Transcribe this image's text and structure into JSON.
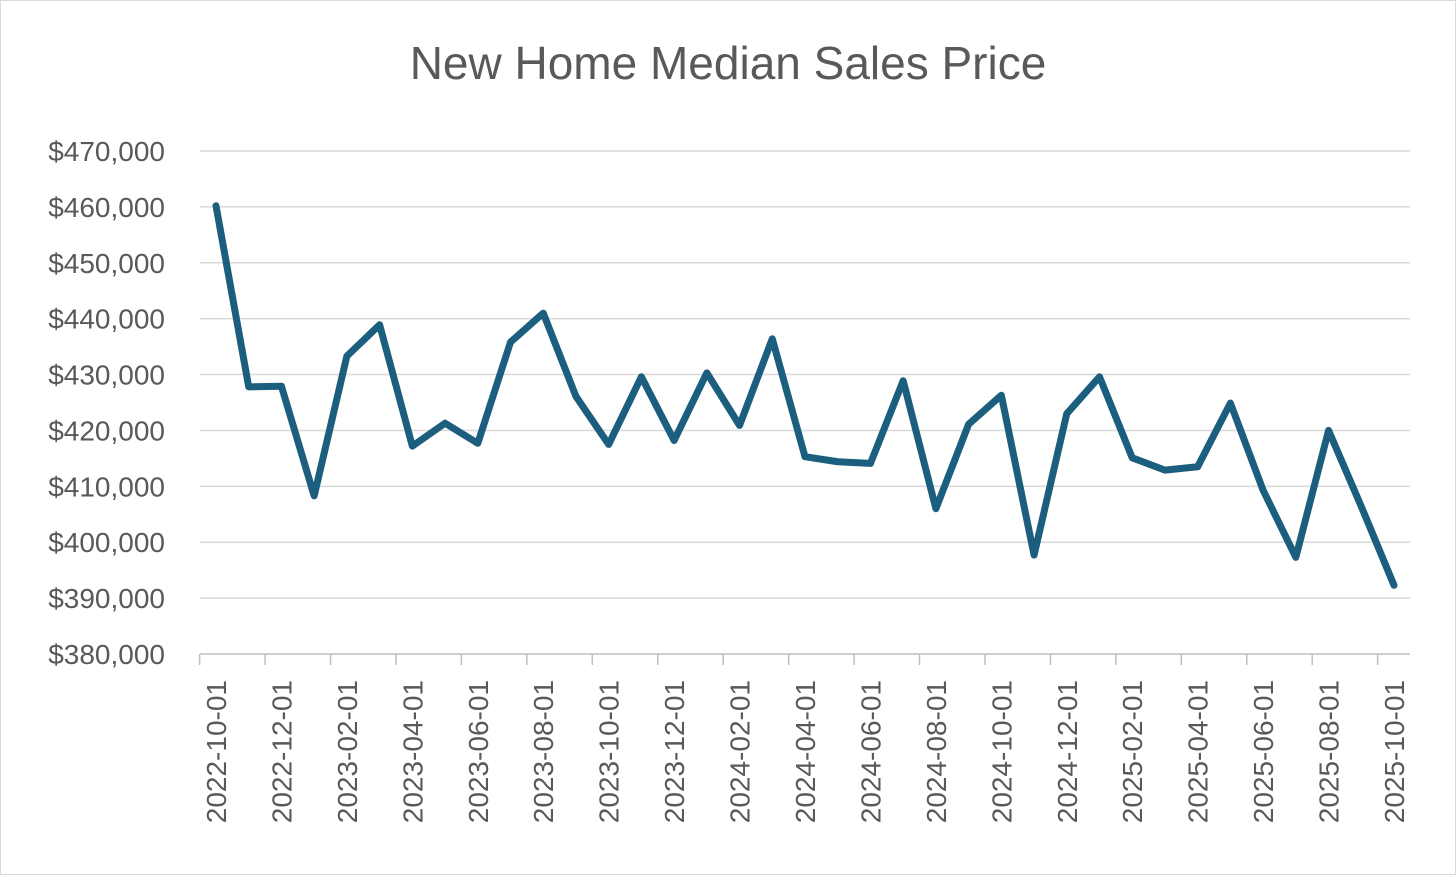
{
  "chart_data": {
    "type": "line",
    "title": "New Home Median Sales Price",
    "xlabel": "",
    "ylabel": "",
    "ylim": [
      380000,
      470000
    ],
    "ytick_step": 10000,
    "yticks": [
      "$380,000",
      "$390,000",
      "$400,000",
      "$410,000",
      "$420,000",
      "$430,000",
      "$440,000",
      "$450,000",
      "$460,000",
      "$470,000"
    ],
    "xticks": [
      "2022-10-01",
      "2022-12-01",
      "2023-02-01",
      "2023-04-01",
      "2023-06-01",
      "2023-08-01",
      "2023-10-01",
      "2023-12-01",
      "2024-02-01",
      "2024-04-01",
      "2024-06-01",
      "2024-08-01",
      "2024-10-01",
      "2024-12-01",
      "2025-02-01",
      "2025-04-01",
      "2025-06-01",
      "2025-08-01",
      "2025-10-01"
    ],
    "grid": true,
    "legend": "none",
    "color": "#1b5e7e",
    "x": [
      "2022-10-01",
      "2022-11-01",
      "2022-12-01",
      "2023-01-01",
      "2023-02-01",
      "2023-03-01",
      "2023-04-01",
      "2023-05-01",
      "2023-06-01",
      "2023-07-01",
      "2023-08-01",
      "2023-09-01",
      "2023-10-01",
      "2023-11-01",
      "2023-12-01",
      "2024-01-01",
      "2024-02-01",
      "2024-03-01",
      "2024-04-01",
      "2024-05-01",
      "2024-06-01",
      "2024-07-01",
      "2024-08-01",
      "2024-09-01",
      "2024-10-01",
      "2024-11-01",
      "2024-12-01",
      "2025-01-01",
      "2025-02-01",
      "2025-03-01",
      "2025-04-01",
      "2025-05-01",
      "2025-06-01",
      "2025-07-01",
      "2025-08-01",
      "2025-09-01",
      "2025-10-01"
    ],
    "series": [
      {
        "values": [
          460200,
          427800,
          427900,
          408300,
          433300,
          438900,
          417200,
          421300,
          417700,
          435800,
          441000,
          426100,
          417500,
          429600,
          418200,
          430300,
          420900,
          436400,
          415300,
          414400,
          414100,
          428900,
          406000,
          421100,
          426300,
          397700,
          423000,
          429600,
          415100,
          412900,
          413500,
          424900,
          409300,
          397300,
          420000,
          406400,
          392300
        ]
      }
    ]
  }
}
